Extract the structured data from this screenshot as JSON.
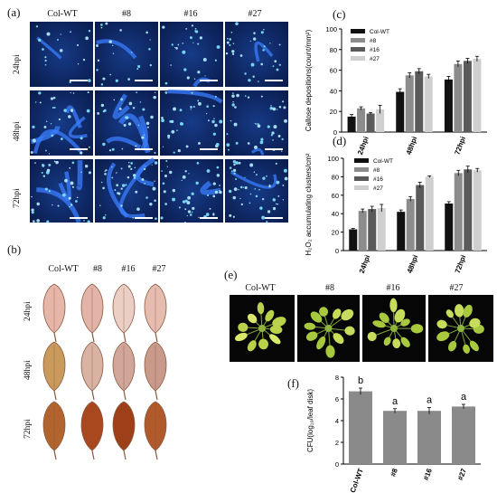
{
  "panels": {
    "a": {
      "label": "(a)",
      "columns": [
        "Col-WT",
        "#8",
        "#16",
        "#27"
      ],
      "rows": [
        "24hpi",
        "48hpi",
        "72hpi"
      ]
    },
    "b": {
      "label": "(b)",
      "columns": [
        "Col-WT",
        "#8",
        "#16",
        "#27"
      ],
      "rows": [
        "24hpi",
        "48hpi",
        "72hpi"
      ]
    },
    "c": {
      "label": "(c)"
    },
    "d": {
      "label": "(d)"
    },
    "e": {
      "label": "(e)",
      "columns": [
        "Col-WT",
        "#8",
        "#16",
        "#27"
      ]
    },
    "f": {
      "label": "(f)"
    }
  },
  "chart_data": [
    {
      "id": "c",
      "type": "bar",
      "categories": [
        "24hpi",
        "48hpi",
        "72hpi"
      ],
      "ylabel": "Callose depositions(count/mm²)",
      "ylim": [
        0,
        100
      ],
      "yticks": [
        0,
        20,
        40,
        60,
        80,
        100
      ],
      "legend_position": "top-left",
      "colors": [
        "#111111",
        "#8c8c8c",
        "#5a5a5a",
        "#cfcfcf"
      ],
      "series": [
        {
          "name": "Col-WT",
          "values": [
            15,
            39,
            51
          ],
          "errors": [
            2,
            3,
            3
          ]
        },
        {
          "name": "#8",
          "values": [
            23,
            55,
            66
          ],
          "errors": [
            1.5,
            2.5,
            3
          ]
        },
        {
          "name": "#16",
          "values": [
            18,
            59,
            69
          ],
          "errors": [
            1,
            2.5,
            2.5
          ]
        },
        {
          "name": "#27",
          "values": [
            22,
            54,
            71
          ],
          "errors": [
            4,
            2,
            2.5
          ]
        }
      ]
    },
    {
      "id": "d",
      "type": "bar",
      "categories": [
        "24hpi",
        "48hpi",
        "72hpi"
      ],
      "ylabel": "H₂O₂ accumulating clusters/cm²",
      "ylim": [
        0,
        100
      ],
      "yticks": [
        0,
        20,
        40,
        60,
        80,
        100
      ],
      "legend_position": "top-left",
      "colors": [
        "#111111",
        "#8c8c8c",
        "#5a5a5a",
        "#cfcfcf"
      ],
      "series": [
        {
          "name": "Col-WT",
          "values": [
            23,
            42,
            51
          ],
          "errors": [
            1,
            2,
            2
          ]
        },
        {
          "name": "#8",
          "values": [
            43,
            56,
            84
          ],
          "errors": [
            2,
            2.5,
            3
          ]
        },
        {
          "name": "#16",
          "values": [
            45,
            71,
            88
          ],
          "errors": [
            3,
            3,
            3.5
          ]
        },
        {
          "name": "#27",
          "values": [
            46,
            80,
            87
          ],
          "errors": [
            4,
            1,
            2
          ]
        }
      ]
    },
    {
      "id": "f",
      "type": "bar",
      "categories": [
        "Col-WT",
        "#8",
        "#16",
        "#27"
      ],
      "ylabel": "CFU(log₁₀/leaf disk)",
      "ylim": [
        0,
        8
      ],
      "yticks": [
        0,
        2,
        4,
        6,
        8
      ],
      "colors": [
        "#8a8a8a"
      ],
      "series": [
        {
          "values": [
            6.7,
            4.9,
            4.9,
            5.3
          ],
          "errors": [
            0.3,
            0.2,
            0.3,
            0.2
          ],
          "letters": [
            "b",
            "a",
            "a",
            "a"
          ]
        }
      ]
    }
  ]
}
